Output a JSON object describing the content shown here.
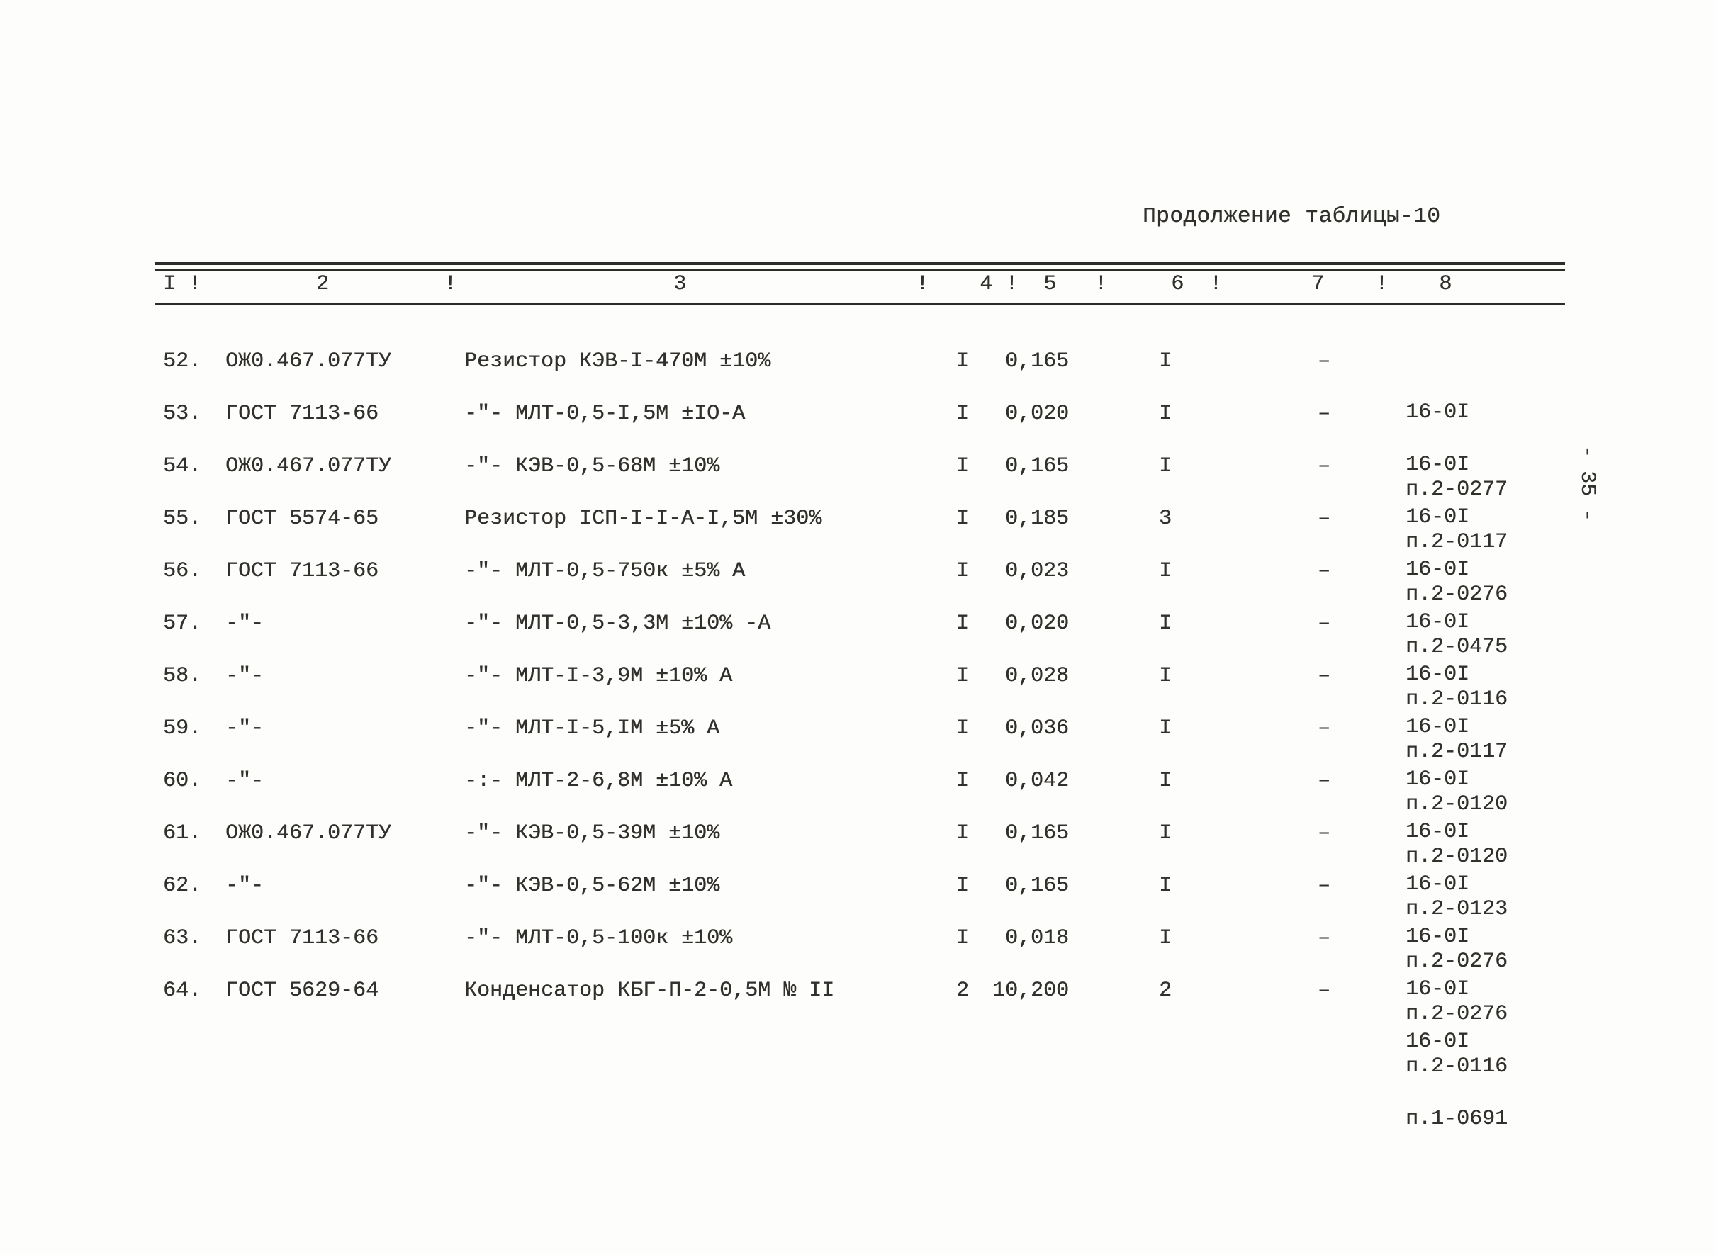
{
  "page": {
    "title": "Продолжение таблицы-10",
    "side_number": "- 35 -"
  },
  "table": {
    "header_line": "I !         2         !                 3                  !    4 !  5   !     6  !       7    !    8",
    "rows": [
      {
        "num": "52.",
        "std": "ОЖ0.467.077ТУ",
        "desc": "Резистор КЭВ-I-470М ±10%",
        "qty": "I",
        "c5": "0,165",
        "c6": "I",
        "c7": "–",
        "ref1": "16-0I",
        "ref2": "п.2-0277"
      },
      {
        "num": "53.",
        "std": "ГОСТ 7113-66",
        "desc": "-\"- МЛТ-0,5-I,5М ±IO-А",
        "qty": "I",
        "c5": "0,020",
        "c6": "I",
        "c7": "–",
        "ref1": "16-0I",
        "ref2": "п.2-0117"
      },
      {
        "num": "54.",
        "std": "ОЖ0.467.077ТУ",
        "desc": "-\"- КЭВ-0,5-68М ±10%",
        "qty": "I",
        "c5": "0,165",
        "c6": "I",
        "c7": "–",
        "ref1": "16-0I",
        "ref2": "п.2-0276"
      },
      {
        "num": "55.",
        "std": "ГОСТ 5574-65",
        "desc": "Резистор IСП-I-I-А-I,5М ±30%",
        "qty": "I",
        "c5": "0,185",
        "c6": "3",
        "c7": "–",
        "ref1": "16-0I",
        "ref2": "п.2-0475"
      },
      {
        "num": "56.",
        "std": "ГОСТ 7113-66",
        "desc": "-\"- МЛТ-0,5-750к ±5% А",
        "qty": "I",
        "c5": "0,023",
        "c6": "I",
        "c7": "–",
        "ref1": "16-0I",
        "ref2": "п.2-0116"
      },
      {
        "num": "57.",
        "std": "-\"-",
        "desc": "-\"- МЛТ-0,5-3,3М ±10% -А",
        "qty": "I",
        "c5": "0,020",
        "c6": "I",
        "c7": "–",
        "ref1": "16-0I",
        "ref2": "п.2-0117"
      },
      {
        "num": "58.",
        "std": "-\"-",
        "desc": "-\"- МЛТ-I-3,9М ±10% А",
        "qty": "I",
        "c5": "0,028",
        "c6": "I",
        "c7": "–",
        "ref1": "16-0I",
        "ref2": "п.2-0120"
      },
      {
        "num": "59.",
        "std": "-\"-",
        "desc": "-\"- МЛТ-I-5,IМ ±5% А",
        "qty": "I",
        "c5": "0,036",
        "c6": "I",
        "c7": "–",
        "ref1": "16-0I",
        "ref2": "п.2-0120"
      },
      {
        "num": "60.",
        "std": "-\"-",
        "desc": "-:- МЛТ-2-6,8М ±10% А",
        "qty": "I",
        "c5": "0,042",
        "c6": "I",
        "c7": "–",
        "ref1": "16-0I",
        "ref2": "п.2-0123"
      },
      {
        "num": "61.",
        "std": "ОЖ0.467.077ТУ",
        "desc": "-\"- КЭВ-0,5-39М ±10%",
        "qty": "I",
        "c5": "0,165",
        "c6": "I",
        "c7": "–",
        "ref1": "16-0I",
        "ref2": "п.2-0276"
      },
      {
        "num": "62.",
        "std": "-\"-",
        "desc": "-\"- КЭВ-0,5-62М ±10%",
        "qty": "I",
        "c5": "0,165",
        "c6": "I",
        "c7": "–",
        "ref1": "16-0I",
        "ref2": "п.2-0276"
      },
      {
        "num": "63.",
        "std": "ГОСТ 7113-66",
        "desc": "-\"- МЛТ-0,5-100к ±10%",
        "qty": "I",
        "c5": "0,018",
        "c6": "I",
        "c7": "–",
        "ref1": "16-0I",
        "ref2": "п.2-0116"
      },
      {
        "num": "64.",
        "std": "ГОСТ 5629-64",
        "desc": "Конденсатор КБГ-П-2-0,5М № II",
        "qty": "2",
        "c5": "10,200",
        "c6": "2",
        "c7": "–",
        "ref1": "16-0I",
        "ref2": "п.1-0691"
      }
    ]
  }
}
